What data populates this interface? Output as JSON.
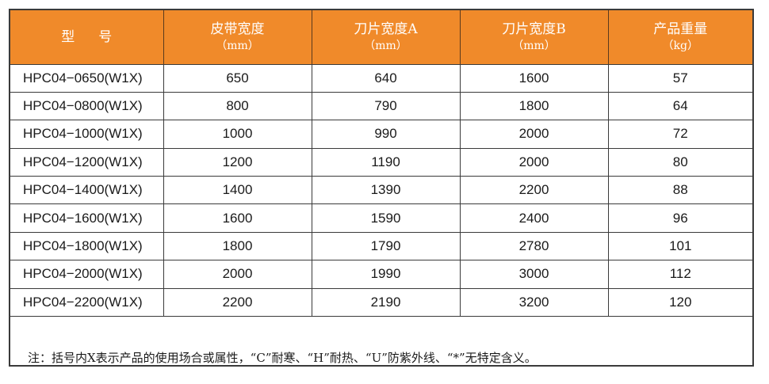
{
  "table": {
    "headers": [
      {
        "label": "型号",
        "unit": ""
      },
      {
        "label": "皮带宽度",
        "unit": "（mm）"
      },
      {
        "label": "刀片宽度A",
        "unit": "（mm）"
      },
      {
        "label": "刀片宽度B",
        "unit": "（mm）"
      },
      {
        "label": "产品重量",
        "unit": "（kg）"
      }
    ],
    "rows": [
      [
        "HPC04−0650(W1X)",
        "650",
        "640",
        "1600",
        "57"
      ],
      [
        "HPC04−0800(W1X)",
        "800",
        "790",
        "1800",
        "64"
      ],
      [
        "HPC04−1000(W1X)",
        "1000",
        "990",
        "2000",
        "72"
      ],
      [
        "HPC04−1200(W1X)",
        "1200",
        "1190",
        "2000",
        "80"
      ],
      [
        "HPC04−1400(W1X)",
        "1400",
        "1390",
        "2200",
        "88"
      ],
      [
        "HPC04−1600(W1X)",
        "1600",
        "1590",
        "2400",
        "96"
      ],
      [
        "HPC04−1800(W1X)",
        "1800",
        "1790",
        "2780",
        "101"
      ],
      [
        "HPC04−2000(W1X)",
        "2000",
        "1990",
        "3000",
        "112"
      ],
      [
        "HPC04−2200(W1X)",
        "2200",
        "2190",
        "3200",
        "120"
      ]
    ]
  },
  "note": "注：括号内X表示产品的使用场合或属性，“C”耐寒、“H”耐热、“U”防紫外线、“*”无特定含义。",
  "colors": {
    "header_background": "#f08a2a",
    "header_text": "#ffffff",
    "border": "#3a3a3a"
  }
}
